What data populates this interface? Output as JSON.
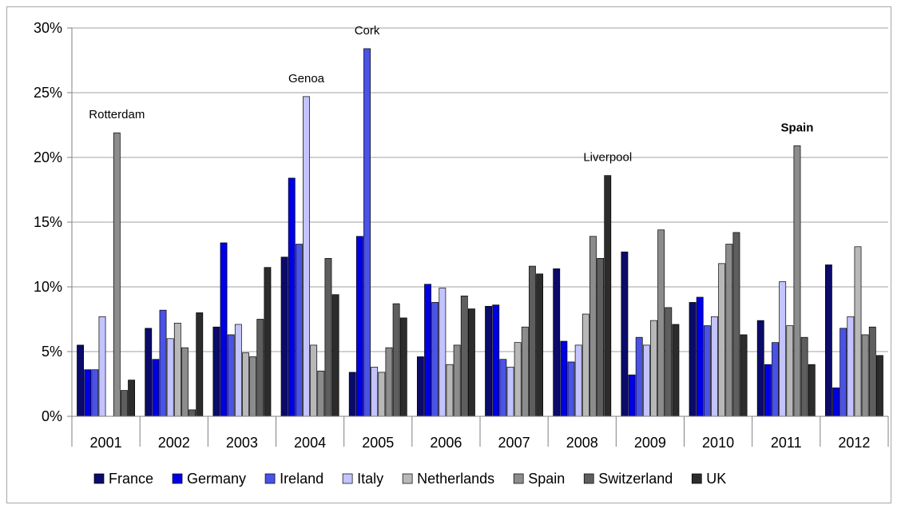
{
  "chart_data": {
    "type": "bar",
    "title": "",
    "xlabel": "",
    "ylabel": "",
    "ylim": [
      0,
      0.3
    ],
    "yticks": [
      "0%",
      "5%",
      "10%",
      "15%",
      "20%",
      "25%",
      "30%"
    ],
    "grid": true,
    "legend_position": "bottom",
    "categories": [
      "2001",
      "2002",
      "2003",
      "2004",
      "2005",
      "2006",
      "2007",
      "2008",
      "2009",
      "2010",
      "2011",
      "2012"
    ],
    "series": [
      {
        "name": "France",
        "color": "#0b0b6b",
        "values": [
          0.055,
          0.068,
          0.069,
          0.123,
          0.034,
          0.046,
          0.085,
          0.114,
          0.127,
          0.088,
          0.074,
          0.117
        ]
      },
      {
        "name": "Germany",
        "color": "#0000e6",
        "values": [
          0.036,
          0.044,
          0.134,
          0.184,
          0.139,
          0.102,
          0.086,
          0.058,
          0.032,
          0.092,
          0.04,
          0.022
        ]
      },
      {
        "name": "Ireland",
        "color": "#4b52e6",
        "values": [
          0.036,
          0.082,
          0.063,
          0.133,
          0.284,
          0.088,
          0.044,
          0.042,
          0.061,
          0.07,
          0.057,
          0.068
        ]
      },
      {
        "name": "Italy",
        "color": "#c3c3ff",
        "values": [
          0.077,
          0.06,
          0.071,
          0.247,
          0.038,
          0.099,
          0.038,
          0.055,
          0.055,
          0.077,
          0.104,
          0.077
        ]
      },
      {
        "name": "Netherlands",
        "color": "#b8b8b8",
        "values": [
          0.0,
          0.072,
          0.049,
          0.055,
          0.034,
          0.04,
          0.057,
          0.079,
          0.074,
          0.118,
          0.07,
          0.131
        ]
      },
      {
        "name": "Spain",
        "color": "#8c8c8c",
        "values": [
          0.219,
          0.053,
          0.046,
          0.035,
          0.053,
          0.055,
          0.069,
          0.139,
          0.144,
          0.133,
          0.209,
          0.063
        ]
      },
      {
        "name": "Switzerland",
        "color": "#5e5e5e",
        "values": [
          0.02,
          0.005,
          0.075,
          0.122,
          0.087,
          0.093,
          0.116,
          0.122,
          0.084,
          0.142,
          0.061,
          0.069
        ]
      },
      {
        "name": "UK",
        "color": "#2c2c2c",
        "values": [
          0.028,
          0.08,
          0.115,
          0.094,
          0.076,
          0.083,
          0.11,
          0.186,
          0.071,
          0.063,
          0.04,
          0.047
        ]
      }
    ],
    "annotations": [
      {
        "text": "Rotterdam",
        "category": "2001",
        "series": "Spain",
        "bold": false
      },
      {
        "text": "Genoa",
        "category": "2004",
        "series": "Italy",
        "bold": false
      },
      {
        "text": "Cork",
        "category": "2005",
        "series": "Ireland",
        "bold": false
      },
      {
        "text": "Liverpool",
        "category": "2008",
        "series": "UK",
        "bold": false
      },
      {
        "text": "Spain",
        "category": "2011",
        "series": "Spain",
        "bold": true
      }
    ]
  }
}
